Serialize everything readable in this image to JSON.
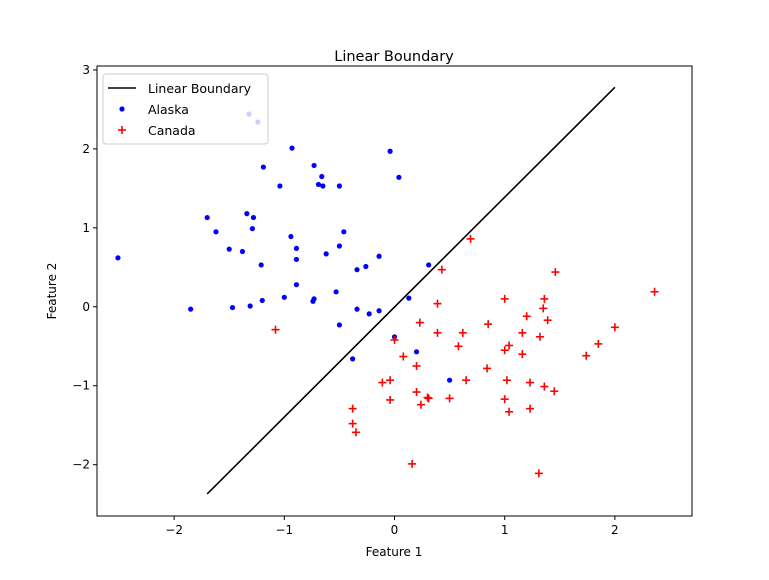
{
  "chart_data": {
    "type": "scatter",
    "title": "Linear Boundary",
    "xlabel": "Feature 1",
    "ylabel": "Feature 2",
    "xlim": [
      -2.7,
      2.7
    ],
    "ylim": [
      -2.65,
      3.05
    ],
    "xticks": [
      -2,
      -1,
      0,
      1,
      2
    ],
    "yticks": [
      -2,
      -1,
      0,
      1,
      2,
      3
    ],
    "xtick_labels": [
      "−2",
      "−1",
      "0",
      "1",
      "2"
    ],
    "ytick_labels": [
      "−2",
      "−1",
      "0",
      "1",
      "2",
      "3"
    ],
    "grid": false,
    "legend_position": "top-left",
    "legend": [
      "Linear Boundary",
      "Alaska",
      "Canada"
    ],
    "boundary": {
      "name": "Linear Boundary",
      "color": "#000000",
      "x": [
        -1.7,
        2.0
      ],
      "y": [
        -2.37,
        2.78
      ]
    },
    "series": [
      {
        "name": "Alaska",
        "marker": "dot",
        "color": "#0000ff",
        "points": [
          [
            -1.32,
            2.44
          ],
          [
            -1.24,
            2.34
          ],
          [
            -0.93,
            2.01
          ],
          [
            -0.04,
            1.97
          ],
          [
            -1.19,
            1.77
          ],
          [
            -0.73,
            1.79
          ],
          [
            -0.66,
            1.65
          ],
          [
            0.04,
            1.64
          ],
          [
            -1.04,
            1.53
          ],
          [
            -0.69,
            1.55
          ],
          [
            -0.65,
            1.53
          ],
          [
            -0.5,
            1.53
          ],
          [
            -1.7,
            1.13
          ],
          [
            -1.34,
            1.18
          ],
          [
            -1.28,
            1.13
          ],
          [
            -1.62,
            0.95
          ],
          [
            -1.29,
            0.99
          ],
          [
            -0.94,
            0.89
          ],
          [
            -0.46,
            0.95
          ],
          [
            -1.5,
            0.73
          ],
          [
            -1.38,
            0.7
          ],
          [
            -0.89,
            0.74
          ],
          [
            -0.5,
            0.77
          ],
          [
            -0.62,
            0.67
          ],
          [
            -0.89,
            0.6
          ],
          [
            -0.14,
            0.64
          ],
          [
            -1.21,
            0.53
          ],
          [
            -0.26,
            0.51
          ],
          [
            -0.34,
            0.47
          ],
          [
            0.31,
            0.53
          ],
          [
            -0.89,
            0.28
          ],
          [
            -0.53,
            0.19
          ],
          [
            -1.0,
            0.12
          ],
          [
            -0.73,
            0.1
          ],
          [
            -1.2,
            0.08
          ],
          [
            -0.74,
            0.07
          ],
          [
            0.13,
            0.11
          ],
          [
            -2.51,
            0.62
          ],
          [
            -1.85,
            -0.03
          ],
          [
            -1.47,
            -0.01
          ],
          [
            -1.31,
            0.01
          ],
          [
            -0.34,
            -0.03
          ],
          [
            -0.14,
            -0.05
          ],
          [
            -0.23,
            -0.09
          ],
          [
            -0.5,
            -0.23
          ],
          [
            0.0,
            -0.38
          ],
          [
            0.2,
            -0.57
          ],
          [
            -0.38,
            -0.66
          ],
          [
            0.5,
            -0.93
          ]
        ]
      },
      {
        "name": "Canada",
        "marker": "plus",
        "color": "#ff0000",
        "points": [
          [
            2.36,
            0.19
          ],
          [
            1.46,
            0.44
          ],
          [
            1.36,
            0.1
          ],
          [
            1.0,
            0.1
          ],
          [
            0.43,
            0.47
          ],
          [
            0.69,
            0.86
          ],
          [
            0.39,
            0.04
          ],
          [
            1.35,
            -0.02
          ],
          [
            1.2,
            -0.12
          ],
          [
            1.39,
            -0.17
          ],
          [
            2.0,
            -0.26
          ],
          [
            -1.08,
            -0.29
          ],
          [
            0.23,
            -0.2
          ],
          [
            0.85,
            -0.22
          ],
          [
            0.39,
            -0.33
          ],
          [
            0.62,
            -0.33
          ],
          [
            1.16,
            -0.33
          ],
          [
            1.32,
            -0.38
          ],
          [
            0.0,
            -0.42
          ],
          [
            1.85,
            -0.47
          ],
          [
            0.58,
            -0.5
          ],
          [
            1.04,
            -0.49
          ],
          [
            1.0,
            -0.55
          ],
          [
            1.16,
            -0.6
          ],
          [
            0.08,
            -0.63
          ],
          [
            1.74,
            -0.62
          ],
          [
            0.2,
            -0.75
          ],
          [
            0.84,
            -0.78
          ],
          [
            0.65,
            -0.93
          ],
          [
            1.02,
            -0.93
          ],
          [
            -0.04,
            -0.93
          ],
          [
            -0.11,
            -0.96
          ],
          [
            1.23,
            -0.96
          ],
          [
            1.36,
            -1.01
          ],
          [
            1.45,
            -1.07
          ],
          [
            0.2,
            -1.08
          ],
          [
            0.3,
            -1.15
          ],
          [
            0.31,
            -1.16
          ],
          [
            -0.04,
            -1.18
          ],
          [
            0.5,
            -1.16
          ],
          [
            1.0,
            -1.17
          ],
          [
            0.24,
            -1.24
          ],
          [
            1.23,
            -1.29
          ],
          [
            1.04,
            -1.33
          ],
          [
            -0.38,
            -1.29
          ],
          [
            -0.38,
            -1.48
          ],
          [
            -0.35,
            -1.59
          ],
          [
            0.16,
            -1.99
          ],
          [
            1.31,
            -2.11
          ]
        ]
      }
    ]
  }
}
